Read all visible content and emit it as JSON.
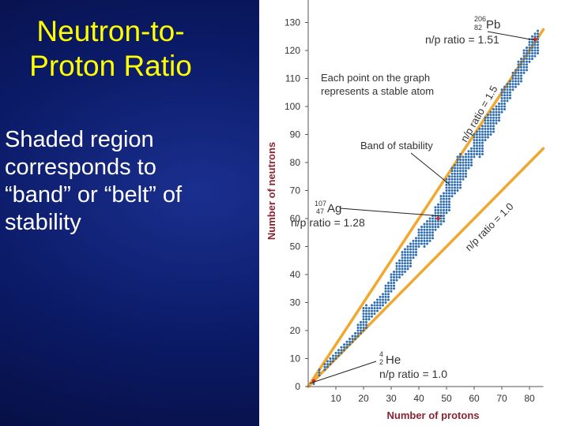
{
  "slide": {
    "title_lines": [
      "Neutron-to-",
      "Proton Ratio"
    ],
    "body_lines": [
      "Shaded region",
      "corresponds to",
      "“band” or “belt” of",
      "stability"
    ]
  },
  "colors": {
    "title": "#ffff00",
    "body_text": "#ffffff",
    "axis_label": "#8a2332",
    "points": "#2e6db0",
    "guide_lines": "#f0a830",
    "highlight_points": "#d62828"
  },
  "chart_data": {
    "type": "scatter",
    "title": "",
    "xlabel": "Number of protons",
    "ylabel": "Number of neutrons",
    "xlim": [
      0,
      85
    ],
    "ylim": [
      0,
      135
    ],
    "xticks": [
      10,
      20,
      30,
      40,
      50,
      60,
      70,
      80
    ],
    "yticks": [
      0,
      10,
      20,
      30,
      40,
      50,
      60,
      70,
      80,
      90,
      100,
      110,
      120,
      130
    ],
    "grid": false,
    "series": [
      {
        "role": "stable-nuclides",
        "band": [
          {
            "x": 2,
            "lo": 1,
            "hi": 2
          },
          {
            "x": 4,
            "lo": 4,
            "hi": 6
          },
          {
            "x": 6,
            "lo": 6,
            "hi": 8
          },
          {
            "x": 8,
            "lo": 8,
            "hi": 10
          },
          {
            "x": 10,
            "lo": 10,
            "hi": 12
          },
          {
            "x": 12,
            "lo": 12,
            "hi": 14
          },
          {
            "x": 14,
            "lo": 14,
            "hi": 16
          },
          {
            "x": 16,
            "lo": 16,
            "hi": 18
          },
          {
            "x": 18,
            "lo": 18,
            "hi": 22
          },
          {
            "x": 20,
            "lo": 20,
            "hi": 28
          },
          {
            "x": 22,
            "lo": 24,
            "hi": 28
          },
          {
            "x": 24,
            "lo": 26,
            "hi": 30
          },
          {
            "x": 26,
            "lo": 28,
            "hi": 32
          },
          {
            "x": 28,
            "lo": 30,
            "hi": 36
          },
          {
            "x": 30,
            "lo": 34,
            "hi": 40
          },
          {
            "x": 32,
            "lo": 38,
            "hi": 44
          },
          {
            "x": 34,
            "lo": 40,
            "hi": 48
          },
          {
            "x": 36,
            "lo": 42,
            "hi": 50
          },
          {
            "x": 38,
            "lo": 46,
            "hi": 52
          },
          {
            "x": 40,
            "lo": 50,
            "hi": 56
          },
          {
            "x": 42,
            "lo": 50,
            "hi": 58
          },
          {
            "x": 44,
            "lo": 52,
            "hi": 60
          },
          {
            "x": 46,
            "lo": 56,
            "hi": 64
          },
          {
            "x": 48,
            "lo": 58,
            "hi": 68
          },
          {
            "x": 50,
            "lo": 62,
            "hi": 74
          },
          {
            "x": 52,
            "lo": 68,
            "hi": 78
          },
          {
            "x": 54,
            "lo": 70,
            "hi": 82
          },
          {
            "x": 56,
            "lo": 74,
            "hi": 82
          },
          {
            "x": 58,
            "lo": 78,
            "hi": 84
          },
          {
            "x": 60,
            "lo": 82,
            "hi": 90
          },
          {
            "x": 62,
            "lo": 82,
            "hi": 92
          },
          {
            "x": 64,
            "lo": 88,
            "hi": 96
          },
          {
            "x": 66,
            "lo": 90,
            "hi": 98
          },
          {
            "x": 68,
            "lo": 94,
            "hi": 100
          },
          {
            "x": 70,
            "lo": 98,
            "hi": 106
          },
          {
            "x": 72,
            "lo": 102,
            "hi": 108
          },
          {
            "x": 74,
            "lo": 106,
            "hi": 112
          },
          {
            "x": 76,
            "lo": 108,
            "hi": 116
          },
          {
            "x": 78,
            "lo": 112,
            "hi": 120
          },
          {
            "x": 80,
            "lo": 116,
            "hi": 124
          },
          {
            "x": 82,
            "lo": 118,
            "hi": 126
          }
        ]
      }
    ],
    "highlighted_points": [
      {
        "x": 2,
        "y": 2
      },
      {
        "x": 47,
        "y": 60
      },
      {
        "x": 82,
        "y": 124
      }
    ],
    "guide_lines": [
      {
        "label": "n/p ratio = 1.0",
        "slope": 1.0
      },
      {
        "label": "n/p ratio = 1.5",
        "slope": 1.5
      }
    ],
    "annotations": {
      "pb_mass": "206",
      "pb_z": "82",
      "pb_symbol": "Pb",
      "pb_ratio": "n/p ratio = 1.51",
      "each_point_line1": "Each point on the graph",
      "each_point_line2": "represents a stable atom",
      "band_label": "Band of stability",
      "ag_mass": "107",
      "ag_z": "47",
      "ag_symbol": "Ag",
      "ag_ratio": "n/p ratio = 1.28",
      "he_mass": "4",
      "he_z": "2",
      "he_symbol": "He",
      "he_ratio": "n/p ratio = 1.0"
    }
  }
}
